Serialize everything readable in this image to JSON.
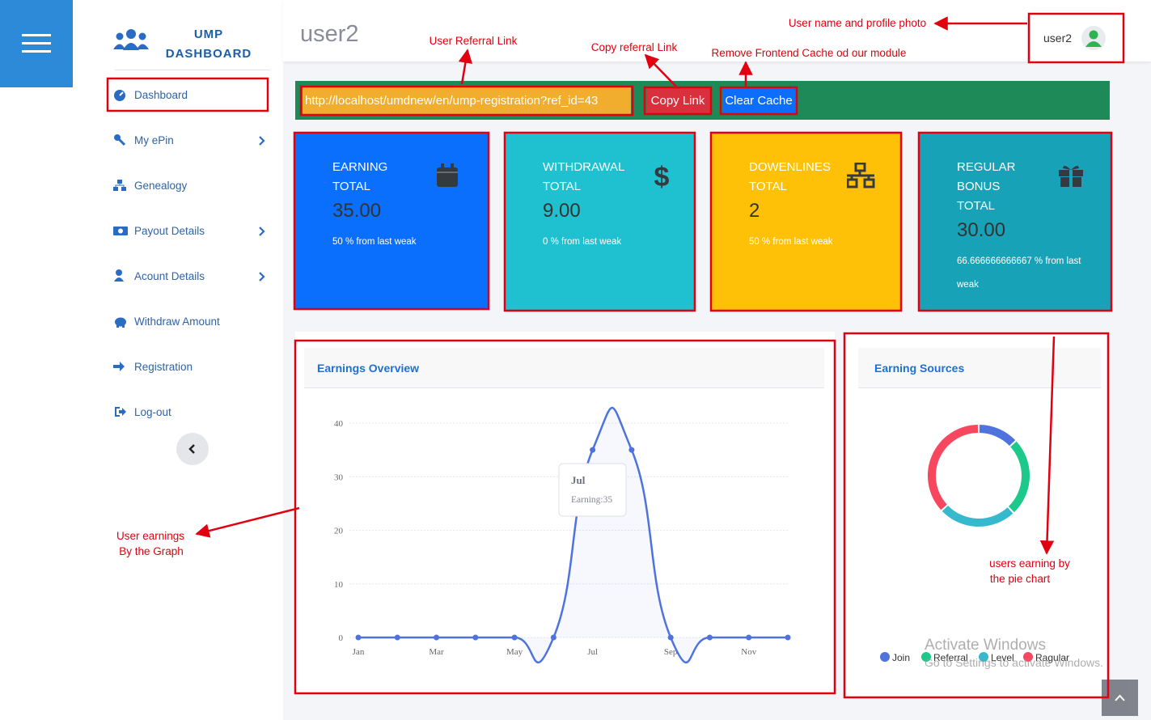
{
  "sidebar": {
    "logo": [
      "UMP",
      "DASHBOARD"
    ],
    "menu": [
      "Dashboard",
      "My ePin",
      "Genealogy",
      "Payout Details",
      "Acount Details",
      "Withdraw Amount",
      "Registration",
      "Log-out"
    ]
  },
  "header": {
    "page_title": "user2",
    "user_name": "user2"
  },
  "referral_bar": {
    "link": "http://localhost/umdnew/en/ump-registration?ref_id=43",
    "copy_button": "Copy Link",
    "clear_button": "Clear Cache"
  },
  "cards": [
    {
      "title": [
        "EARNING",
        "TOTAL"
      ],
      "value": "35.00",
      "note": "50 % from last weak",
      "color": "#0a6ffd"
    },
    {
      "title": [
        "WITHDRAWAL",
        "TOTAL"
      ],
      "value": "9.00",
      "note": "0 % from last weak",
      "color": "#1fc0d0"
    },
    {
      "title": [
        "DOWENLINES",
        "TOTAL"
      ],
      "value": "2",
      "note": "50 % from last weak",
      "color": "#ffc107"
    },
    {
      "title": [
        "REGULAR",
        "BONUS",
        "TOTAL"
      ],
      "value": "30.00",
      "note": "66.666666666667 % from last weak",
      "color": "#17a2b8"
    }
  ],
  "chart_data": [
    {
      "type": "line",
      "title": "Earnings Overview",
      "categories": [
        "Jan",
        null,
        "Mar",
        null,
        "May",
        null,
        "Jul",
        null,
        "Sep",
        null,
        "Nov",
        null
      ],
      "values": [
        0,
        0,
        0,
        0,
        0,
        0,
        35,
        35,
        0,
        0,
        0,
        0
      ],
      "color": "#4e73df",
      "ylim": [
        0,
        40
      ],
      "yticks": [
        0,
        10,
        20,
        30,
        40
      ],
      "grid": true,
      "tooltip": {
        "title": "Jul",
        "text": "Earning:35"
      }
    },
    {
      "type": "doughnut",
      "title": "Earning Sources",
      "categories": [
        "Join",
        "Referral",
        "Level",
        "Ragular"
      ],
      "values": [
        13,
        25,
        25,
        37
      ],
      "colors": [
        "#4e73df",
        "#1cc88a",
        "#36b9cc",
        "#f6475f"
      ],
      "legend": "bottom"
    }
  ],
  "annotations": [
    "User Referral Link",
    "Copy referral Link",
    "Remove Frontend Cache od our module",
    "User name and profile photo",
    "User earnings",
    "By the Graph",
    "users earning by",
    "the pie chart"
  ],
  "watermark": [
    "Activate Windows",
    "Go to Settings to activate Windows."
  ]
}
